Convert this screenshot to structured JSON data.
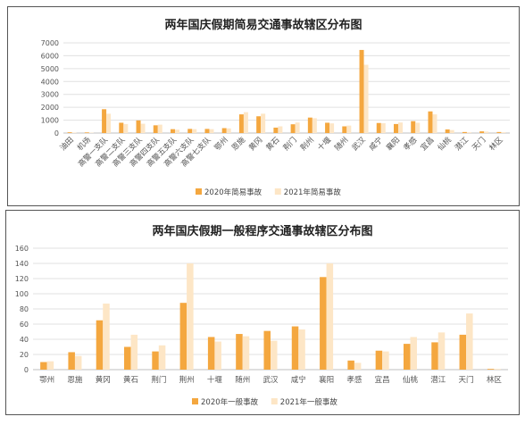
{
  "chart_data": [
    {
      "type": "bar",
      "title": "两年国庆假期简易交通事故辖区分布图",
      "categories": [
        "油田",
        "机场",
        "高警一支队",
        "高警二支队",
        "高警三支队",
        "高警四支队",
        "高警五支队",
        "高警六支队",
        "高警七支队",
        "鄂州",
        "恩施",
        "黄冈",
        "黄石",
        "荆门",
        "荆州",
        "十堰",
        "随州",
        "武汉",
        "咸宁",
        "襄阳",
        "孝感",
        "宜昌",
        "仙桃",
        "潜江",
        "天门",
        "林区"
      ],
      "series": [
        {
          "name": "2020年简易事故",
          "color": "#F4A73F",
          "values": [
            60,
            50,
            1850,
            800,
            980,
            600,
            300,
            320,
            320,
            380,
            1450,
            1300,
            420,
            680,
            1200,
            800,
            520,
            6450,
            780,
            700,
            920,
            1680,
            280,
            80,
            130,
            80
          ]
        },
        {
          "name": "2021年简易事故",
          "color": "#FDE6C6",
          "values": [
            40,
            30,
            1500,
            700,
            720,
            650,
            260,
            300,
            300,
            360,
            1620,
            1500,
            520,
            820,
            1150,
            750,
            580,
            5300,
            760,
            820,
            800,
            1450,
            230,
            60,
            110,
            60
          ]
        }
      ],
      "ylim": [
        0,
        7000
      ],
      "yticks": [
        0,
        1000,
        2000,
        3000,
        4000,
        5000,
        6000,
        7000
      ],
      "legend": "bottom"
    },
    {
      "type": "bar",
      "title": "两年国庆假期一般程序交通事故辖区分布图",
      "categories": [
        "鄂州",
        "恩施",
        "黄冈",
        "黄石",
        "荆门",
        "荆州",
        "十堰",
        "随州",
        "武汉",
        "咸宁",
        "襄阳",
        "孝感",
        "宜昌",
        "仙桃",
        "潜江",
        "天门",
        "林区"
      ],
      "series": [
        {
          "name": "2020年一般事故",
          "color": "#F4A73F",
          "values": [
            10,
            23,
            65,
            30,
            24,
            88,
            43,
            47,
            51,
            57,
            122,
            12,
            25,
            34,
            36,
            46,
            1
          ]
        },
        {
          "name": "2021年一般事故",
          "color": "#FDE6C6",
          "values": [
            11,
            18,
            87,
            46,
            32,
            140,
            37,
            44,
            38,
            53,
            140,
            9,
            24,
            43,
            49,
            74,
            1
          ]
        }
      ],
      "ylim": [
        0,
        160
      ],
      "yticks": [
        0,
        20,
        40,
        60,
        80,
        100,
        120,
        140,
        160
      ],
      "legend": "bottom"
    }
  ]
}
